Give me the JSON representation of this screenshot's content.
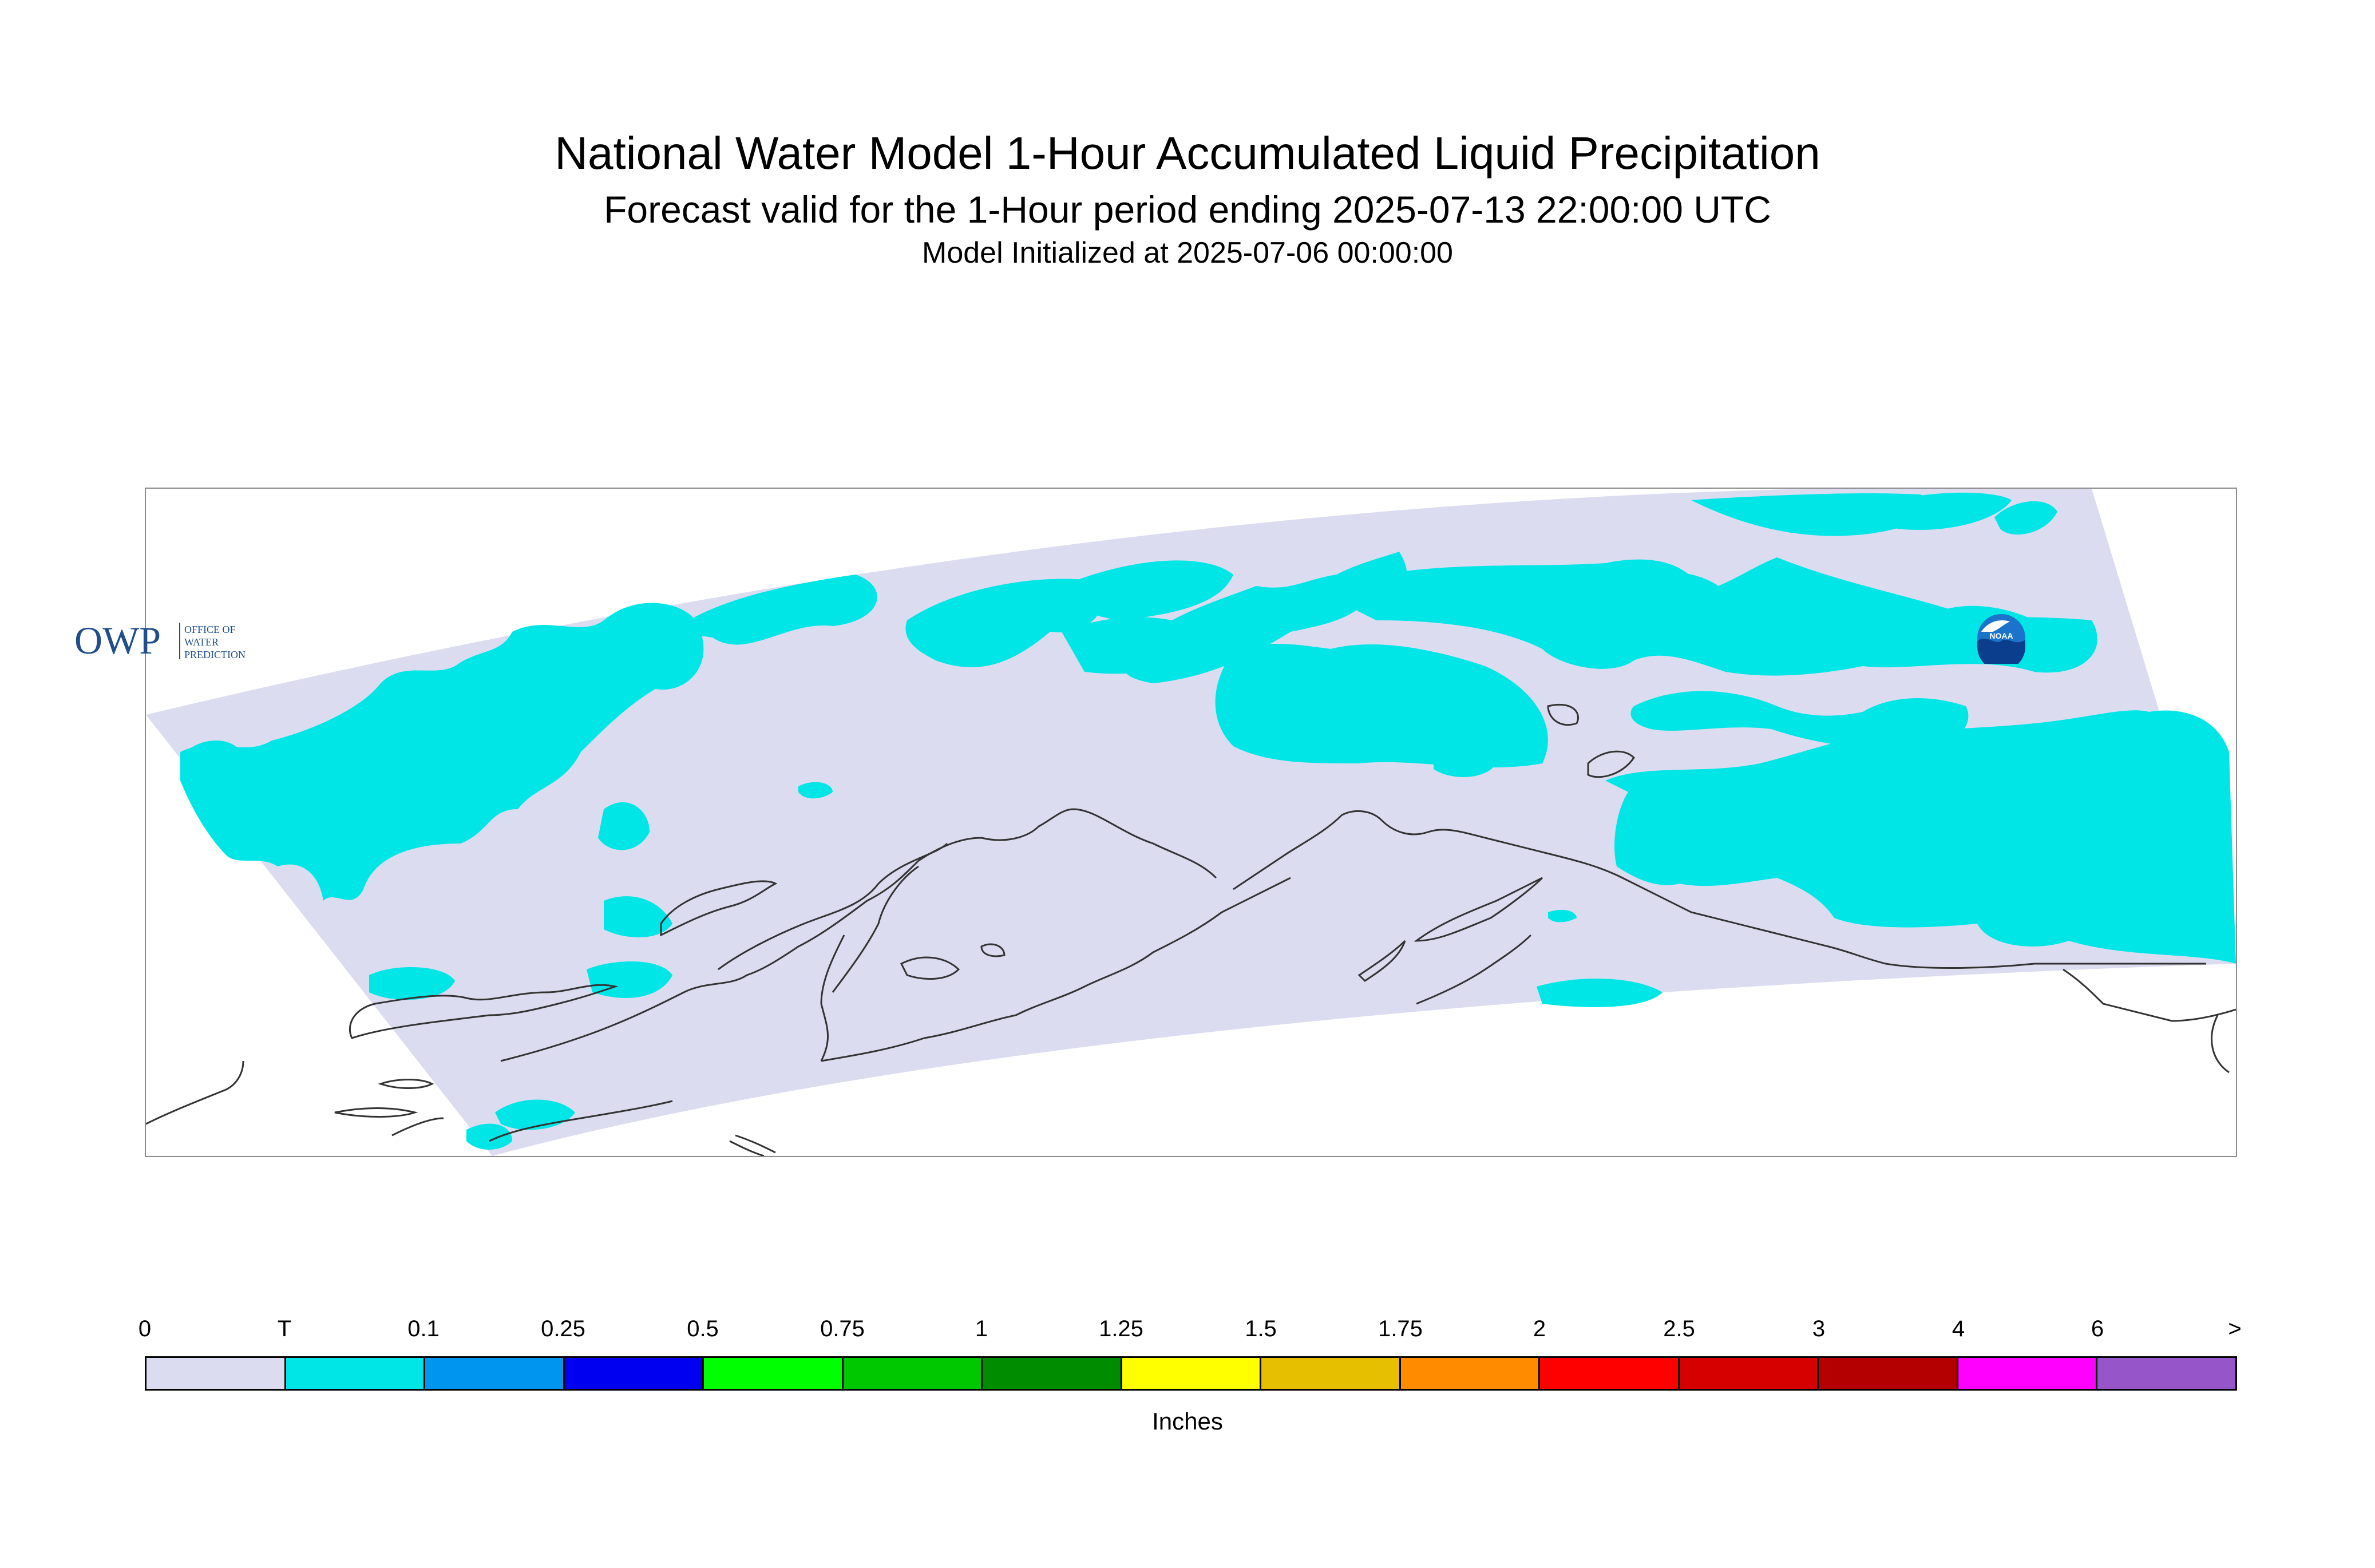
{
  "title": "National Water Model 1-Hour Accumulated Liquid Precipitation",
  "subtitle": "Forecast valid for the 1-Hour period ending 2025-07-13 22:00:00 UTC",
  "init_line": "Model Initialized at 2025-07-06 00:00:00",
  "logos": {
    "owp_letters": "OWP",
    "owp_text_1": "OFFICE OF",
    "owp_text_2": "WATER",
    "owp_text_3": "PREDICTION",
    "noaa_text": "NOAA"
  },
  "legend": {
    "units": "Inches",
    "ticks": [
      "0",
      "T",
      "0.1",
      "0.25",
      "0.5",
      "0.75",
      "1",
      "1.25",
      "1.5",
      "1.75",
      "2",
      "2.5",
      "3",
      "4",
      "6",
      ">"
    ],
    "colors": [
      "#dcdcf0",
      "#00e6e6",
      "#0096f0",
      "#0000f0",
      "#00ff00",
      "#00c800",
      "#008c00",
      "#ffff00",
      "#e6bf00",
      "#ff8c00",
      "#ff0000",
      "#d60000",
      "#b40000",
      "#ff00ff",
      "#9655c8"
    ]
  },
  "map_colors": {
    "domain_fill": "#dcdcf0",
    "trace_fill": "#00e6e6",
    "coastline": "#333333"
  }
}
